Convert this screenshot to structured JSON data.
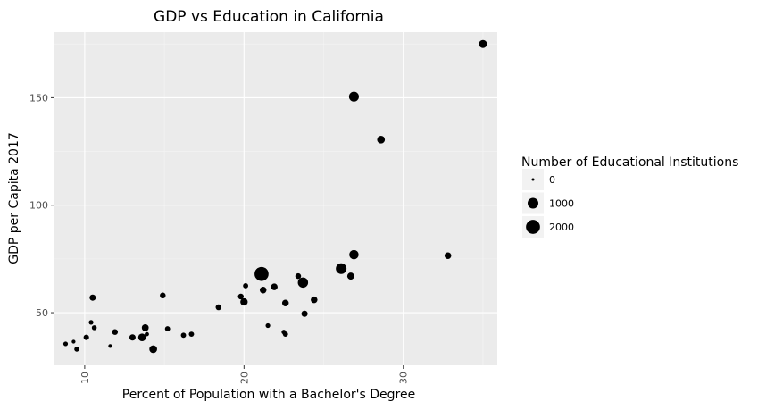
{
  "chart_data": {
    "type": "scatter",
    "title": "GDP vs Education in California",
    "xlabel": "Percent of Population with a Bachelor's Degree",
    "ylabel": "GDP per Capita 2017",
    "xlim": [
      8.1,
      35.9
    ],
    "ylim": [
      25.5,
      180.5
    ],
    "x_ticks": [
      10,
      20,
      30
    ],
    "y_ticks": [
      50,
      100,
      150
    ],
    "grid": true,
    "legend": {
      "title": "Number of Educational Institutions",
      "position": "right",
      "entries": [
        {
          "label": "0",
          "value": 0
        },
        {
          "label": "1000",
          "value": 1000
        },
        {
          "label": "2000",
          "value": 2000
        }
      ]
    },
    "size_range": [
      0,
      2100
    ],
    "point_color": "#000000",
    "panel_background": "#ebebeb",
    "points": [
      {
        "x": 8.8,
        "y": 35.5,
        "size": 60
      },
      {
        "x": 9.3,
        "y": 36.5,
        "size": 20
      },
      {
        "x": 9.5,
        "y": 33.0,
        "size": 80
      },
      {
        "x": 10.1,
        "y": 38.5,
        "size": 120
      },
      {
        "x": 10.4,
        "y": 45.5,
        "size": 60
      },
      {
        "x": 10.5,
        "y": 57.0,
        "size": 200
      },
      {
        "x": 10.6,
        "y": 43.0,
        "size": 80
      },
      {
        "x": 11.6,
        "y": 34.5,
        "size": 20
      },
      {
        "x": 11.9,
        "y": 41.0,
        "size": 150
      },
      {
        "x": 13.0,
        "y": 38.5,
        "size": 200
      },
      {
        "x": 13.6,
        "y": 38.5,
        "size": 400
      },
      {
        "x": 13.8,
        "y": 43.0,
        "size": 280
      },
      {
        "x": 13.9,
        "y": 40.0,
        "size": 40
      },
      {
        "x": 14.3,
        "y": 33.0,
        "size": 400
      },
      {
        "x": 14.9,
        "y": 58.0,
        "size": 150
      },
      {
        "x": 15.2,
        "y": 42.5,
        "size": 100
      },
      {
        "x": 16.2,
        "y": 39.5,
        "size": 100
      },
      {
        "x": 16.7,
        "y": 40.0,
        "size": 100
      },
      {
        "x": 18.4,
        "y": 52.5,
        "size": 150
      },
      {
        "x": 19.8,
        "y": 57.5,
        "size": 150
      },
      {
        "x": 20.0,
        "y": 55.0,
        "size": 350
      },
      {
        "x": 20.1,
        "y": 62.5,
        "size": 100
      },
      {
        "x": 21.1,
        "y": 68.0,
        "size": 2000
      },
      {
        "x": 21.2,
        "y": 60.5,
        "size": 250
      },
      {
        "x": 21.5,
        "y": 44.0,
        "size": 60
      },
      {
        "x": 21.9,
        "y": 62.0,
        "size": 250
      },
      {
        "x": 22.5,
        "y": 41.0,
        "size": 60
      },
      {
        "x": 22.6,
        "y": 54.5,
        "size": 250
      },
      {
        "x": 22.6,
        "y": 40.0,
        "size": 100
      },
      {
        "x": 23.4,
        "y": 67.0,
        "size": 150
      },
      {
        "x": 23.7,
        "y": 64.0,
        "size": 900
      },
      {
        "x": 23.8,
        "y": 49.5,
        "size": 200
      },
      {
        "x": 24.4,
        "y": 56.0,
        "size": 250
      },
      {
        "x": 26.1,
        "y": 70.5,
        "size": 1000
      },
      {
        "x": 26.7,
        "y": 67.0,
        "size": 300
      },
      {
        "x": 26.9,
        "y": 77.0,
        "size": 700
      },
      {
        "x": 26.9,
        "y": 150.5,
        "size": 800
      },
      {
        "x": 28.6,
        "y": 130.5,
        "size": 400
      },
      {
        "x": 32.8,
        "y": 76.5,
        "size": 250
      },
      {
        "x": 35.0,
        "y": 175.0,
        "size": 450
      }
    ]
  }
}
